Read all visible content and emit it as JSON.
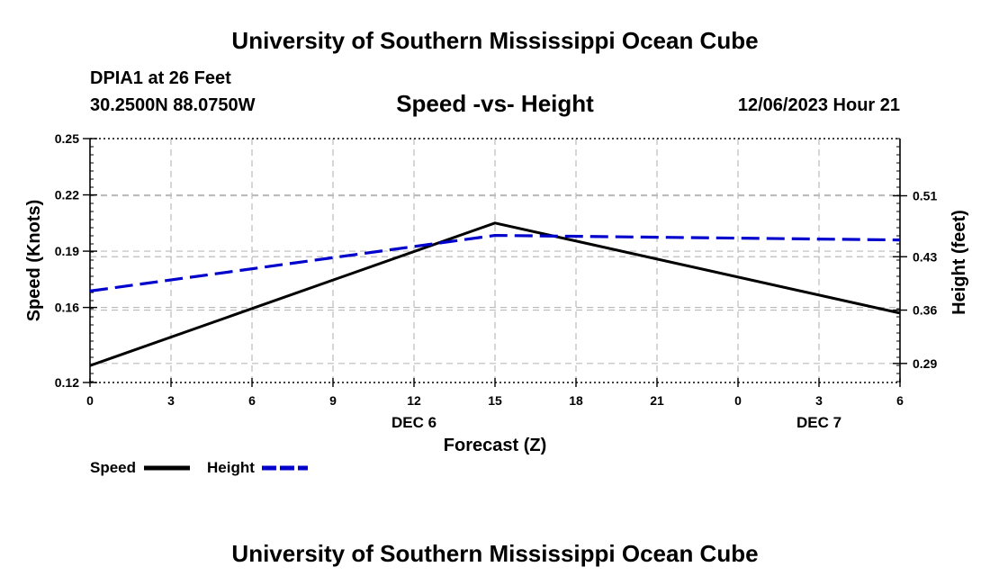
{
  "header": {
    "title_top": "University of Southern Mississippi Ocean Cube",
    "title_bottom": "University of Southern Mississippi Ocean Cube",
    "station": "DPIA1 at 26 Feet",
    "coords": "30.2500N  88.0750W",
    "datetime": "12/06/2023 Hour 21"
  },
  "chart_data": {
    "type": "line",
    "title": "Speed -vs- Height",
    "xlabel": "Forecast (Z)",
    "ylabel": "Speed (Knots)",
    "y2label": "Height (feet)",
    "x_ticks": [
      "0",
      "3",
      "6",
      "9",
      "12",
      "15",
      "18",
      "21",
      "0",
      "3",
      "6"
    ],
    "x_hours": [
      0,
      3,
      6,
      9,
      12,
      15,
      18,
      21,
      24,
      27,
      30
    ],
    "date_labels": [
      {
        "label": "DEC 6",
        "hour": 12
      },
      {
        "label": "DEC 7",
        "hour": 27
      }
    ],
    "ylim": [
      0.12,
      0.25
    ],
    "y_ticks": [
      "0.25",
      "0.22",
      "0.19",
      "0.16",
      "0.12"
    ],
    "y_tick_values": [
      0.25,
      0.22,
      0.19,
      0.16,
      0.12
    ],
    "y2lim": [
      0.265,
      0.585
    ],
    "y2_ticks": [
      "0.51",
      "0.43",
      "0.36",
      "0.29"
    ],
    "y2_tick_values": [
      0.51,
      0.43,
      0.36,
      0.29
    ],
    "series": [
      {
        "name": "Speed",
        "color": "#000000",
        "dashed": false,
        "axis": "left",
        "x": [
          0,
          15,
          30
        ],
        "values": [
          0.129,
          0.205,
          0.157
        ]
      },
      {
        "name": "Height",
        "color": "#0000cc",
        "dashed": true,
        "axis": "right",
        "x": [
          0,
          15,
          30
        ],
        "values": [
          0.385,
          0.458,
          0.452
        ]
      }
    ],
    "legend": {
      "placement": "bottom-left",
      "labels": [
        "Speed",
        "Height"
      ]
    },
    "grid": true
  }
}
